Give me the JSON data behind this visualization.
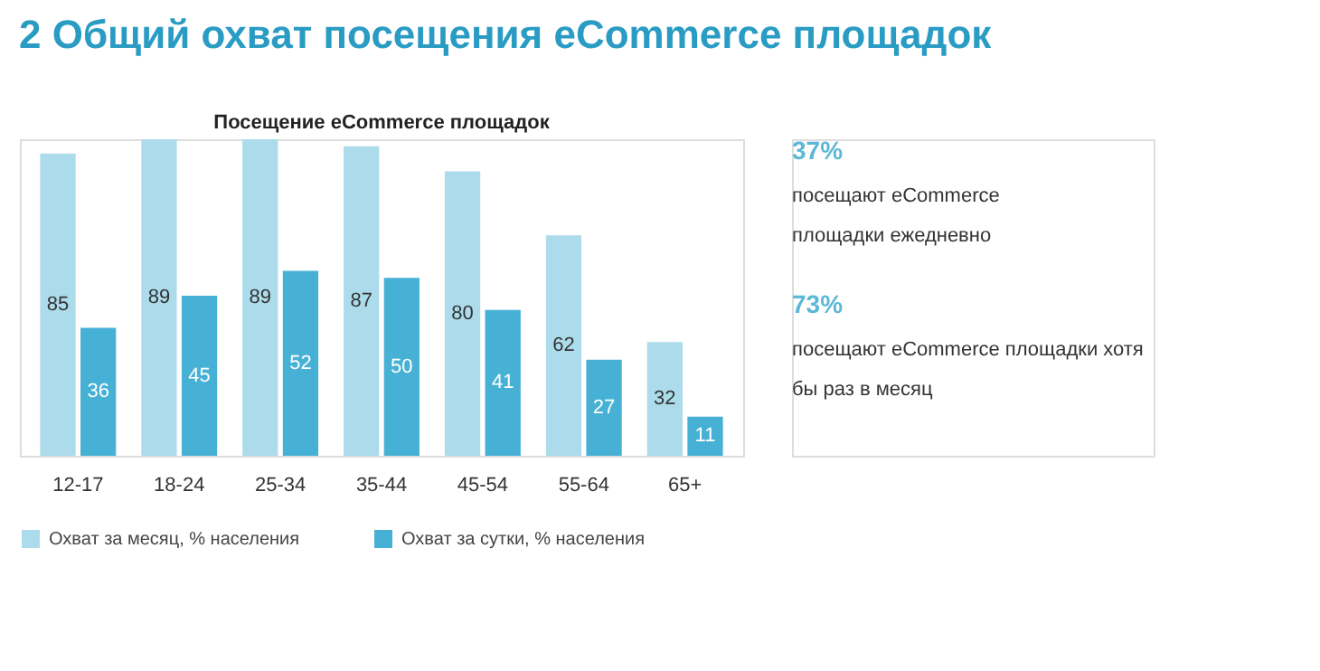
{
  "chart_data": {
    "type": "bar",
    "title": "2 Общий охват посещения eCommerce площадок",
    "subtitle": "Посещение eCommerce площадок",
    "categories": [
      "12-17",
      "18-24",
      "25-34",
      "35-44",
      "45-54",
      "55-64",
      "65+"
    ],
    "series": [
      {
        "name": "Охват за месяц, % населения",
        "color": "#acdceb",
        "values": [
          85,
          89,
          89,
          87,
          80,
          62,
          32
        ]
      },
      {
        "name": "Охват за сутки, % населения",
        "color": "#47b1d5",
        "values": [
          36,
          45,
          52,
          50,
          41,
          27,
          11
        ]
      }
    ],
    "data_labels": true,
    "tick_labels": "x",
    "grid": false,
    "legend": "bottom",
    "annotations": [
      "37%",
      "посещают eCommerce площадки ежедневно",
      "73%",
      "посещают eCommerce площадки хотя бы раз в месяц"
    ]
  }
}
